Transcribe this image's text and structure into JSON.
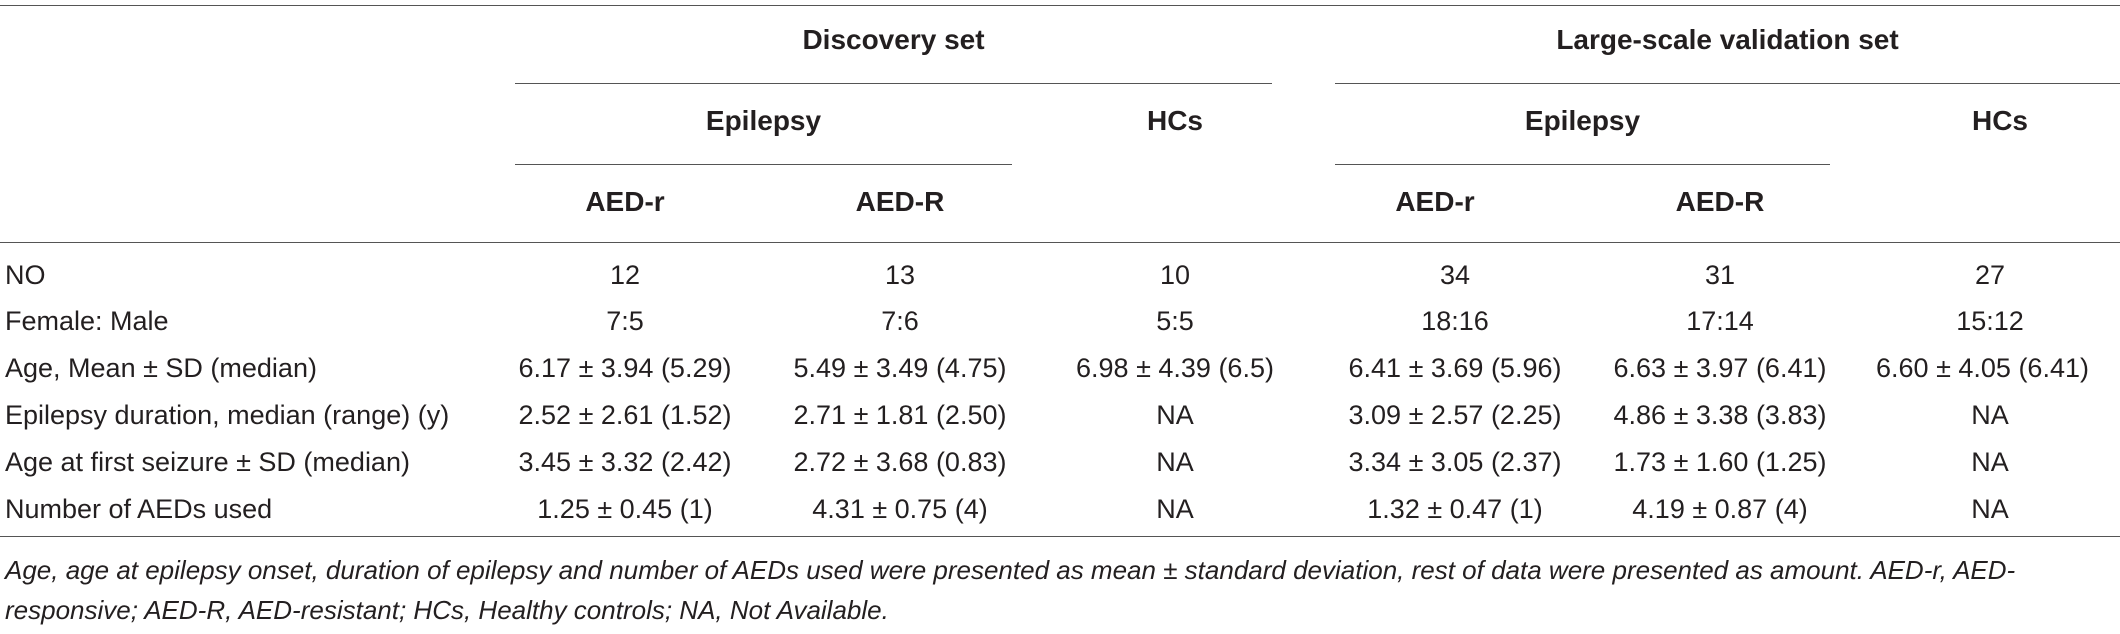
{
  "header": {
    "discovery_set": "Discovery set",
    "validation_set": "Large-scale validation set",
    "epilepsy": "Epilepsy",
    "hcs": "HCs",
    "aed_r": "AED-r",
    "aed_R": "AED-R"
  },
  "rows": [
    {
      "label": "NO",
      "values": [
        "12",
        "13",
        "10",
        "34",
        "31",
        "27"
      ]
    },
    {
      "label": "Female: Male",
      "values": [
        "7:5",
        "7:6",
        "5:5",
        "18:16",
        "17:14",
        "15:12"
      ]
    },
    {
      "label": "Age, Mean ± SD (median)",
      "values": [
        "6.17 ± 3.94 (5.29)",
        "5.49 ± 3.49 (4.75)",
        "6.98 ± 4.39 (6.5)",
        "6.41 ± 3.69 (5.96)",
        "6.63 ± 3.97 (6.41)",
        "6.60 ± 4.05 (6.41)"
      ]
    },
    {
      "label": "Epilepsy duration, median (range) (y)",
      "values": [
        "2.52 ± 2.61 (1.52)",
        "2.71 ± 1.81 (2.50)",
        "NA",
        "3.09 ± 2.57 (2.25)",
        "4.86 ± 3.38 (3.83)",
        "NA"
      ]
    },
    {
      "label": "Age at first seizure ± SD (median)",
      "values": [
        "3.45 ± 3.32 (2.42)",
        "2.72 ± 3.68 (0.83)",
        "NA",
        "3.34 ± 3.05 (2.37)",
        "1.73 ± 1.60 (1.25)",
        "NA"
      ]
    },
    {
      "label": "Number of AEDs used",
      "values": [
        "1.25 ± 0.45 (1)",
        "4.31 ± 0.75 (4)",
        "NA",
        "1.32 ± 0.47 (1)",
        "4.19 ± 0.87 (4)",
        "NA"
      ]
    }
  ],
  "footnote": "Age, age at epilepsy onset, duration of epilepsy and number of AEDs used were presented as mean ± standard deviation, rest of data were presented as amount. AED-r, AED-responsive; AED-R, AED-resistant; HCs, Healthy controls; NA, Not Available."
}
